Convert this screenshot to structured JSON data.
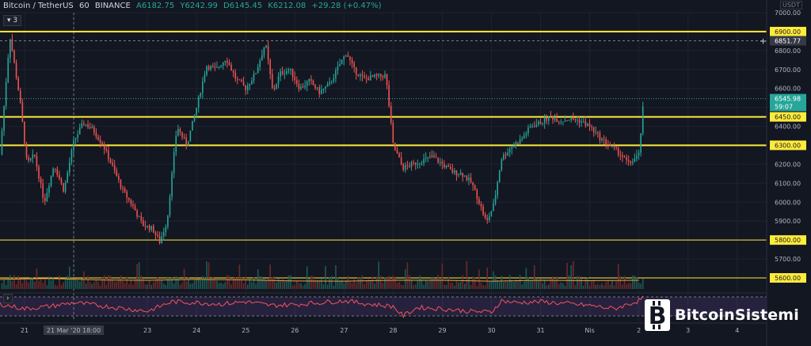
{
  "header": {
    "symbol": "Bitcoin / TetherUS",
    "interval": "60",
    "exchange": "BINANCE",
    "open": "A6182.75",
    "high": "Y6242.99",
    "low": "D6145.45",
    "close": "K6212.08",
    "change": "+29.28 (+0.47%)"
  },
  "indicator_badge": "3",
  "currency": "USDT",
  "watermark": "BitcoinSistemi",
  "colors": {
    "up": "#26a69a",
    "down": "#ef5350",
    "level": "#ffeb3b",
    "background": "#131722",
    "volume_ma": "#e9a03c",
    "rsi": "#f7525f",
    "rsi_band": "#7e57c2"
  },
  "chart_data": {
    "type": "candlestick",
    "ylim": [
      5600,
      7000
    ],
    "y_ticks": [
      "7000.00",
      "6900.00",
      "6800.00",
      "6700.00",
      "6600.00",
      "6500.00",
      "6400.00",
      "6300.00",
      "6200.00",
      "6100.00",
      "6000.00",
      "5900.00",
      "5800.00",
      "5700.00",
      "5600.00"
    ],
    "x_ticks": [
      "21",
      "21 Mar '20   18:00",
      "23",
      "24",
      "25",
      "26",
      "27",
      "28",
      "29",
      "30",
      "31",
      "Nis",
      "2",
      "3",
      "4"
    ],
    "x_tick_pos": [
      0.5,
      1.5,
      3,
      4,
      5,
      6,
      7,
      8,
      9,
      10,
      11,
      12,
      13,
      14,
      15
    ],
    "x_domain": [
      0,
      15.6
    ],
    "horizontal_levels": [
      {
        "value": 6900,
        "label": "6900.00"
      },
      {
        "value": 6450,
        "label": "6450.00"
      },
      {
        "value": 6300,
        "label": "6300.00"
      },
      {
        "value": 5800,
        "label": "5800.00"
      },
      {
        "value": 5600,
        "label": "5600.00"
      }
    ],
    "price_labels": [
      {
        "value": 6851.77,
        "label": "6851.77",
        "kind": "crosshair"
      },
      {
        "value": 6545.98,
        "label": "6545.98",
        "kind": "last"
      },
      {
        "value": 6505,
        "label": "59:07",
        "kind": "countdown"
      }
    ],
    "price_path": [
      [
        0.0,
        6250
      ],
      [
        0.2,
        6880
      ],
      [
        0.4,
        6550
      ],
      [
        0.55,
        6200
      ],
      [
        0.7,
        6250
      ],
      [
        0.9,
        6000
      ],
      [
        1.1,
        6200
      ],
      [
        1.3,
        6060
      ],
      [
        1.5,
        6320
      ],
      [
        1.7,
        6420
      ],
      [
        1.9,
        6380
      ],
      [
        2.1,
        6300
      ],
      [
        2.3,
        6180
      ],
      [
        2.5,
        6060
      ],
      [
        2.7,
        5980
      ],
      [
        2.9,
        5880
      ],
      [
        3.1,
        5860
      ],
      [
        3.25,
        5790
      ],
      [
        3.4,
        5900
      ],
      [
        3.6,
        6400
      ],
      [
        3.8,
        6300
      ],
      [
        4.0,
        6500
      ],
      [
        4.2,
        6720
      ],
      [
        4.4,
        6700
      ],
      [
        4.6,
        6760
      ],
      [
        4.8,
        6650
      ],
      [
        5.0,
        6600
      ],
      [
        5.2,
        6680
      ],
      [
        5.4,
        6840
      ],
      [
        5.55,
        6580
      ],
      [
        5.7,
        6680
      ],
      [
        5.9,
        6700
      ],
      [
        6.1,
        6600
      ],
      [
        6.3,
        6640
      ],
      [
        6.5,
        6580
      ],
      [
        6.7,
        6620
      ],
      [
        6.9,
        6720
      ],
      [
        7.05,
        6790
      ],
      [
        7.2,
        6700
      ],
      [
        7.4,
        6650
      ],
      [
        7.6,
        6660
      ],
      [
        7.85,
        6670
      ],
      [
        8.0,
        6300
      ],
      [
        8.2,
        6180
      ],
      [
        8.4,
        6200
      ],
      [
        8.6,
        6220
      ],
      [
        8.8,
        6240
      ],
      [
        9.0,
        6200
      ],
      [
        9.2,
        6160
      ],
      [
        9.4,
        6150
      ],
      [
        9.6,
        6100
      ],
      [
        9.75,
        6000
      ],
      [
        9.9,
        5890
      ],
      [
        10.05,
        5990
      ],
      [
        10.2,
        6230
      ],
      [
        10.4,
        6290
      ],
      [
        10.6,
        6330
      ],
      [
        10.8,
        6400
      ],
      [
        11.0,
        6420
      ],
      [
        11.2,
        6450
      ],
      [
        11.4,
        6430
      ],
      [
        11.6,
        6440
      ],
      [
        11.8,
        6430
      ],
      [
        12.0,
        6400
      ],
      [
        12.2,
        6340
      ],
      [
        12.4,
        6300
      ],
      [
        12.6,
        6260
      ],
      [
        12.8,
        6200
      ],
      [
        13.0,
        6250
      ],
      [
        13.1,
        6545.98
      ]
    ],
    "volume_ma_path": [
      [
        0,
        0.55
      ],
      [
        1,
        0.6
      ],
      [
        2,
        0.52
      ],
      [
        3,
        0.5
      ],
      [
        4,
        0.55
      ],
      [
        5,
        0.52
      ],
      [
        6,
        0.46
      ],
      [
        7,
        0.45
      ],
      [
        8,
        0.5
      ],
      [
        9,
        0.5
      ],
      [
        10,
        0.45
      ],
      [
        11,
        0.5
      ],
      [
        12,
        0.48
      ],
      [
        13,
        0.5
      ]
    ],
    "rsi_ticks": [
      "50.00"
    ],
    "rsi_path": [
      [
        0,
        55
      ],
      [
        0.5,
        45
      ],
      [
        1,
        50
      ],
      [
        1.5,
        58
      ],
      [
        2,
        52
      ],
      [
        2.5,
        46
      ],
      [
        3,
        40
      ],
      [
        3.5,
        60
      ],
      [
        4,
        58
      ],
      [
        4.5,
        55
      ],
      [
        5,
        60
      ],
      [
        5.5,
        52
      ],
      [
        6,
        54
      ],
      [
        6.5,
        58
      ],
      [
        7,
        62
      ],
      [
        7.5,
        55
      ],
      [
        8,
        50
      ],
      [
        8.2,
        30
      ],
      [
        8.5,
        48
      ],
      [
        9,
        45
      ],
      [
        9.5,
        40
      ],
      [
        10,
        38
      ],
      [
        10.2,
        62
      ],
      [
        10.5,
        58
      ],
      [
        11,
        60
      ],
      [
        11.5,
        56
      ],
      [
        12,
        52
      ],
      [
        12.5,
        45
      ],
      [
        13,
        62
      ],
      [
        13.1,
        70
      ]
    ]
  }
}
